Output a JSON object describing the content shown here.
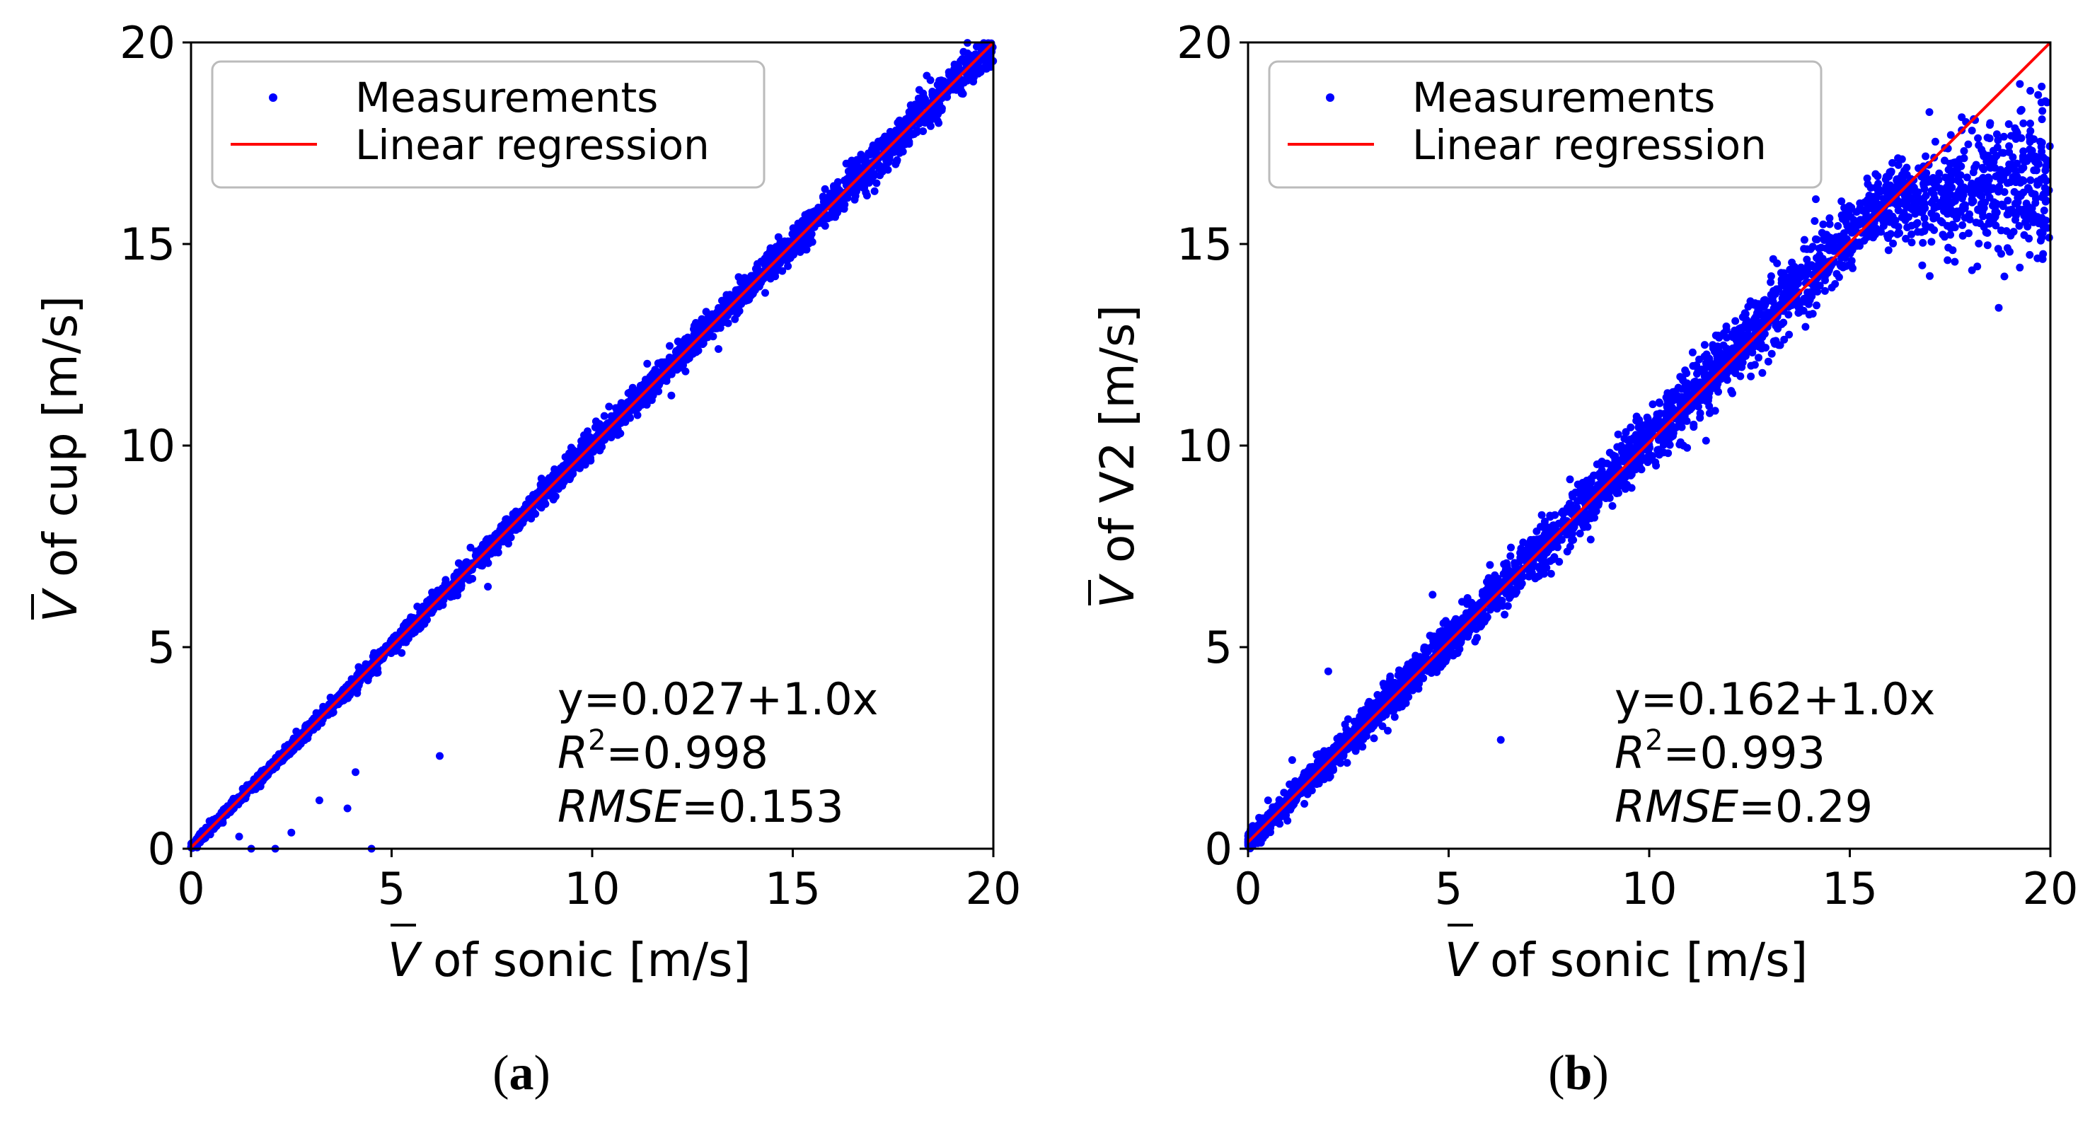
{
  "chart_data": [
    {
      "type": "scatter",
      "panel_label": "a",
      "xlabel": "of  sonic [m/s]",
      "ylabel": "of  cup [m/s]",
      "xlabel_symbol": "V",
      "ylabel_symbol": "V",
      "xlim": [
        0,
        20
      ],
      "ylim": [
        0,
        20
      ],
      "xticks": [
        0,
        5,
        10,
        15,
        20
      ],
      "yticks": [
        0,
        5,
        10,
        15,
        20
      ],
      "legend": {
        "position": "top-left",
        "entries": [
          "Measurements",
          "Linear regression"
        ]
      },
      "series": [
        {
          "name": "Measurements",
          "kind": "points",
          "color": "#0000ff",
          "trend": {
            "intercept": 0.027,
            "slope": 1.0,
            "spread": 0.15
          },
          "outliers": [
            [
              1.2,
              0.3
            ],
            [
              1.5,
              0.0
            ],
            [
              2.1,
              0.0
            ],
            [
              2.5,
              0.4
            ],
            [
              3.2,
              1.2
            ],
            [
              3.9,
              1.0
            ],
            [
              4.1,
              1.9
            ],
            [
              4.5,
              0.0
            ],
            [
              6.2,
              2.3
            ],
            [
              7.4,
              6.5
            ]
          ]
        },
        {
          "name": "Linear regression",
          "kind": "line",
          "color": "#ff0000",
          "intercept": 0.027,
          "slope": 1.0
        }
      ],
      "annotation": {
        "equation": "y=0.027+1.0x",
        "r2_label": "R",
        "r2_sup": "2",
        "r2_value": "=0.998",
        "rmse_label": "RMSE",
        "rmse_value": "=0.153"
      }
    },
    {
      "type": "scatter",
      "panel_label": "b",
      "xlabel": "of  sonic [m/s]",
      "ylabel": "of  V2 [m/s]",
      "xlabel_symbol": "V",
      "ylabel_symbol": "V",
      "xlim": [
        0,
        20
      ],
      "ylim": [
        0,
        20
      ],
      "xticks": [
        0,
        5,
        10,
        15,
        20
      ],
      "yticks": [
        0,
        5,
        10,
        15,
        20
      ],
      "legend": {
        "position": "top-left",
        "entries": [
          "Measurements",
          "Linear regression"
        ]
      },
      "series": [
        {
          "name": "Measurements",
          "kind": "points",
          "color": "#0000ff",
          "trend": {
            "intercept": 0.162,
            "slope": 1.0,
            "spread": 0.35,
            "saturation_start": 15.0,
            "saturation_level": 16.2
          },
          "outliers": [
            [
              0.5,
              1.2
            ],
            [
              1.1,
              2.2
            ],
            [
              2.0,
              4.4
            ],
            [
              6.3,
              2.7
            ],
            [
              4.6,
              6.3
            ],
            [
              19.5,
              18.8
            ],
            [
              19.8,
              18.3
            ],
            [
              18.5,
              18.0
            ]
          ]
        },
        {
          "name": "Linear regression",
          "kind": "line",
          "color": "#ff0000",
          "intercept": 0.162,
          "slope": 1.0
        }
      ],
      "annotation": {
        "equation": "y=0.162+1.0x",
        "r2_label": "R",
        "r2_sup": "2",
        "r2_value": "=0.993",
        "rmse_label": "RMSE",
        "rmse_value": "=0.29"
      }
    }
  ]
}
